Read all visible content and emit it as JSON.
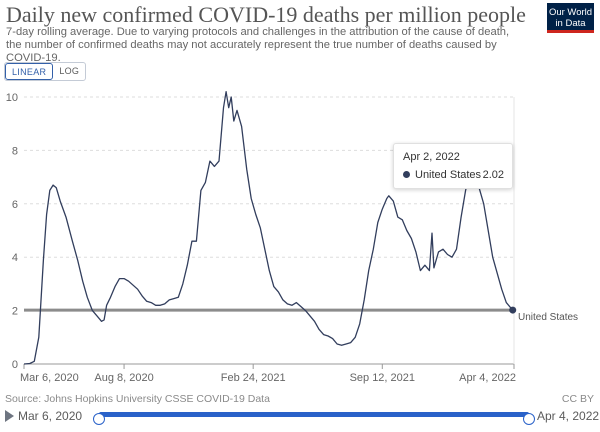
{
  "header": {
    "title": "Daily new confirmed COVID-19 deaths per million people",
    "subtitle": "7-day rolling average. Due to varying protocols and challenges in the attribution of the cause of death, the number of confirmed deaths may not accurately represent the true number of deaths caused by COVID-19.",
    "logo_line1": "Our World",
    "logo_line2": "in Data"
  },
  "scale_toggle": {
    "linear_label": "LINEAR",
    "log_label": "LOG",
    "selected": "LINEAR"
  },
  "tooltip": {
    "date": "Apr 2, 2022",
    "series": "United States",
    "value": "2.02"
  },
  "footer": {
    "source": "Source: Johns Hopkins University CSSE COVID-19 Data",
    "license": "CC BY"
  },
  "timeline": {
    "start_label": "Mar 6, 2020",
    "end_label": "Apr 4, 2022"
  },
  "colors": {
    "series": "#323e5d",
    "reference_line": "#8c8c8c",
    "accent": "#2a62c9",
    "logo_bg": "#002147",
    "logo_bar": "#ce261e"
  },
  "chart_data": {
    "type": "line",
    "title": "Daily new confirmed COVID-19 deaths per million people",
    "ylim": [
      0,
      10
    ],
    "yticks": [
      0,
      2,
      4,
      6,
      8,
      10
    ],
    "xlim": [
      "2020-03-06",
      "2022-04-04"
    ],
    "xticks": [
      {
        "date": "2020-03-06",
        "label": "Mar 6, 2020"
      },
      {
        "date": "2020-08-08",
        "label": "Aug 8, 2020"
      },
      {
        "date": "2021-02-24",
        "label": "Feb 24, 2021"
      },
      {
        "date": "2021-09-12",
        "label": "Sep 12, 2021"
      },
      {
        "date": "2022-04-04",
        "label": "Apr 4, 2022"
      }
    ],
    "reference_value": 2.02,
    "grid": true,
    "series": [
      {
        "name": "United States",
        "end_label": "United States",
        "points": [
          [
            "2020-03-06",
            0.0
          ],
          [
            "2020-03-15",
            0.02
          ],
          [
            "2020-03-22",
            0.1
          ],
          [
            "2020-03-29",
            1.0
          ],
          [
            "2020-04-05",
            3.9
          ],
          [
            "2020-04-10",
            5.6
          ],
          [
            "2020-04-15",
            6.5
          ],
          [
            "2020-04-20",
            6.7
          ],
          [
            "2020-04-25",
            6.6
          ],
          [
            "2020-05-01",
            6.1
          ],
          [
            "2020-05-10",
            5.5
          ],
          [
            "2020-05-20",
            4.6
          ],
          [
            "2020-05-28",
            3.9
          ],
          [
            "2020-06-05",
            3.1
          ],
          [
            "2020-06-12",
            2.5
          ],
          [
            "2020-06-20",
            2.0
          ],
          [
            "2020-06-27",
            1.8
          ],
          [
            "2020-07-04",
            1.6
          ],
          [
            "2020-07-08",
            1.65
          ],
          [
            "2020-07-12",
            2.2
          ],
          [
            "2020-07-18",
            2.5
          ],
          [
            "2020-07-25",
            2.9
          ],
          [
            "2020-08-01",
            3.2
          ],
          [
            "2020-08-08",
            3.2
          ],
          [
            "2020-08-15",
            3.1
          ],
          [
            "2020-08-22",
            2.95
          ],
          [
            "2020-08-29",
            2.8
          ],
          [
            "2020-09-05",
            2.55
          ],
          [
            "2020-09-12",
            2.35
          ],
          [
            "2020-09-19",
            2.3
          ],
          [
            "2020-09-26",
            2.2
          ],
          [
            "2020-10-03",
            2.2
          ],
          [
            "2020-10-10",
            2.25
          ],
          [
            "2020-10-17",
            2.4
          ],
          [
            "2020-10-24",
            2.45
          ],
          [
            "2020-10-31",
            2.5
          ],
          [
            "2020-11-07",
            3.0
          ],
          [
            "2020-11-14",
            3.7
          ],
          [
            "2020-11-21",
            4.6
          ],
          [
            "2020-11-28",
            4.6
          ],
          [
            "2020-12-05",
            6.5
          ],
          [
            "2020-12-12",
            6.8
          ],
          [
            "2020-12-19",
            7.6
          ],
          [
            "2020-12-26",
            7.4
          ],
          [
            "2021-01-02",
            7.6
          ],
          [
            "2021-01-09",
            9.6
          ],
          [
            "2021-01-13",
            10.2
          ],
          [
            "2021-01-17",
            9.6
          ],
          [
            "2021-01-21",
            10.0
          ],
          [
            "2021-01-25",
            9.1
          ],
          [
            "2021-01-30",
            9.5
          ],
          [
            "2021-02-06",
            8.9
          ],
          [
            "2021-02-14",
            7.3
          ],
          [
            "2021-02-21",
            6.2
          ],
          [
            "2021-02-28",
            5.6
          ],
          [
            "2021-03-07",
            5.1
          ],
          [
            "2021-03-14",
            4.3
          ],
          [
            "2021-03-21",
            3.5
          ],
          [
            "2021-03-28",
            2.9
          ],
          [
            "2021-04-04",
            2.7
          ],
          [
            "2021-04-11",
            2.4
          ],
          [
            "2021-04-18",
            2.25
          ],
          [
            "2021-04-25",
            2.2
          ],
          [
            "2021-05-02",
            2.3
          ],
          [
            "2021-05-09",
            2.15
          ],
          [
            "2021-05-16",
            2.0
          ],
          [
            "2021-05-23",
            1.8
          ],
          [
            "2021-05-30",
            1.6
          ],
          [
            "2021-06-06",
            1.3
          ],
          [
            "2021-06-13",
            1.1
          ],
          [
            "2021-06-20",
            1.05
          ],
          [
            "2021-06-27",
            0.95
          ],
          [
            "2021-07-04",
            0.75
          ],
          [
            "2021-07-11",
            0.7
          ],
          [
            "2021-07-18",
            0.75
          ],
          [
            "2021-07-25",
            0.8
          ],
          [
            "2021-08-01",
            1.0
          ],
          [
            "2021-08-08",
            1.5
          ],
          [
            "2021-08-15",
            2.4
          ],
          [
            "2021-08-22",
            3.5
          ],
          [
            "2021-08-29",
            4.3
          ],
          [
            "2021-09-05",
            5.3
          ],
          [
            "2021-09-12",
            5.8
          ],
          [
            "2021-09-19",
            6.2
          ],
          [
            "2021-09-22",
            6.3
          ],
          [
            "2021-09-29",
            6.1
          ],
          [
            "2021-10-06",
            5.5
          ],
          [
            "2021-10-13",
            5.4
          ],
          [
            "2021-10-20",
            5.0
          ],
          [
            "2021-10-27",
            4.7
          ],
          [
            "2021-11-03",
            4.2
          ],
          [
            "2021-11-10",
            3.5
          ],
          [
            "2021-11-17",
            3.7
          ],
          [
            "2021-11-24",
            3.5
          ],
          [
            "2021-11-28",
            4.9
          ],
          [
            "2021-12-01",
            3.6
          ],
          [
            "2021-12-08",
            4.2
          ],
          [
            "2021-12-15",
            4.3
          ],
          [
            "2021-12-22",
            4.1
          ],
          [
            "2021-12-29",
            4.0
          ],
          [
            "2022-01-05",
            4.3
          ],
          [
            "2022-01-12",
            5.5
          ],
          [
            "2022-01-19",
            6.5
          ],
          [
            "2022-01-26",
            7.2
          ],
          [
            "2022-02-02",
            7.6
          ],
          [
            "2022-02-09",
            6.6
          ],
          [
            "2022-02-16",
            6.0
          ],
          [
            "2022-02-23",
            5.0
          ],
          [
            "2022-03-02",
            4.0
          ],
          [
            "2022-03-09",
            3.4
          ],
          [
            "2022-03-16",
            2.8
          ],
          [
            "2022-03-23",
            2.3
          ],
          [
            "2022-04-02",
            2.02
          ],
          [
            "2022-04-04",
            1.9
          ]
        ]
      }
    ]
  }
}
